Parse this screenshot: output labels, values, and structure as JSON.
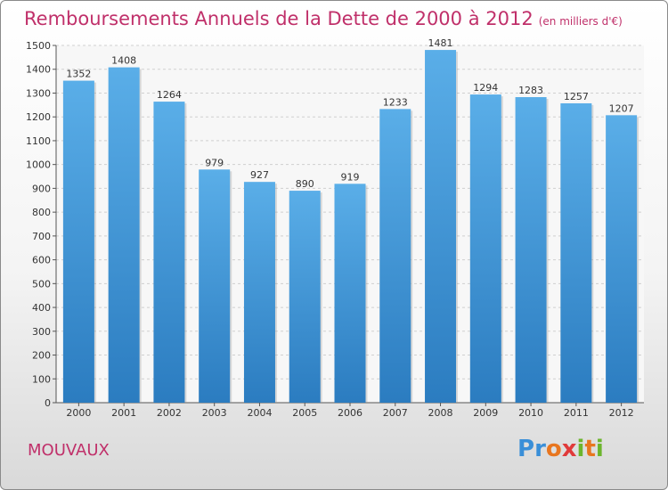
{
  "title": "Remboursements Annuels de la Dette de 2000 à 2012",
  "unit": "(en milliers d'€)",
  "location": "MOUVAUX",
  "logo": "Proxiti",
  "colors": {
    "title": "#c0306a",
    "bar_top": "#5aaee8",
    "bar_bottom": "#2b7cc0"
  },
  "chart_data": {
    "type": "bar",
    "title": "Remboursements Annuels de la Dette de 2000 à 2012",
    "categories": [
      "2000",
      "2001",
      "2002",
      "2003",
      "2004",
      "2005",
      "2006",
      "2007",
      "2008",
      "2009",
      "2010",
      "2011",
      "2012"
    ],
    "values": [
      1352,
      1408,
      1264,
      979,
      927,
      890,
      919,
      1233,
      1481,
      1294,
      1283,
      1257,
      1207
    ],
    "ylim": [
      0,
      1500
    ],
    "yticks": [
      0,
      100,
      200,
      300,
      400,
      500,
      600,
      700,
      800,
      900,
      1000,
      1100,
      1200,
      1300,
      1400,
      1500
    ],
    "grid": true
  }
}
